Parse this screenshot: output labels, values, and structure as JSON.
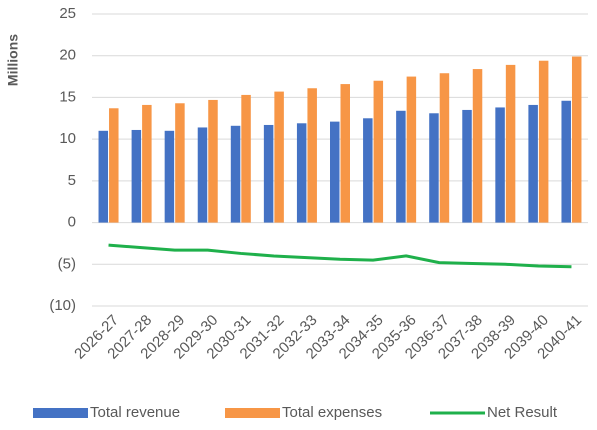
{
  "chart_data": {
    "type": "bar",
    "y_label": "Millions",
    "categories": [
      "2026-27",
      "2027-28",
      "2028-29",
      "2029-30",
      "2030-31",
      "2031-32",
      "2032-33",
      "2033-34",
      "2034-35",
      "2035-36",
      "2036-37",
      "2037-38",
      "2038-39",
      "2039-40",
      "2040-41"
    ],
    "series": [
      {
        "name": "Total revenue",
        "color": "#4472c4",
        "values": [
          11.0,
          11.1,
          11.0,
          11.4,
          11.6,
          11.7,
          11.9,
          12.1,
          12.5,
          13.4,
          13.1,
          13.5,
          13.8,
          14.1,
          14.6
        ]
      },
      {
        "name": "Total expenses",
        "color": "#f79646",
        "values": [
          13.7,
          14.1,
          14.3,
          14.7,
          15.3,
          15.7,
          16.1,
          16.6,
          17.0,
          17.5,
          17.9,
          18.4,
          18.9,
          19.4,
          19.9
        ]
      },
      {
        "name": "Net Result",
        "color": "#1fb04b",
        "type": "line",
        "values": [
          -2.7,
          -3.0,
          -3.3,
          -3.3,
          -3.7,
          -4.0,
          -4.2,
          -4.4,
          -4.5,
          -4.0,
          -4.8,
          -4.9,
          -5.0,
          -5.2,
          -5.3
        ]
      }
    ],
    "ylim": [
      -10,
      25
    ],
    "yticks": [
      -10,
      -5,
      0,
      5,
      10,
      15,
      20,
      25
    ],
    "ytick_labels_override": null,
    "grid": true,
    "legend": "bottom"
  }
}
